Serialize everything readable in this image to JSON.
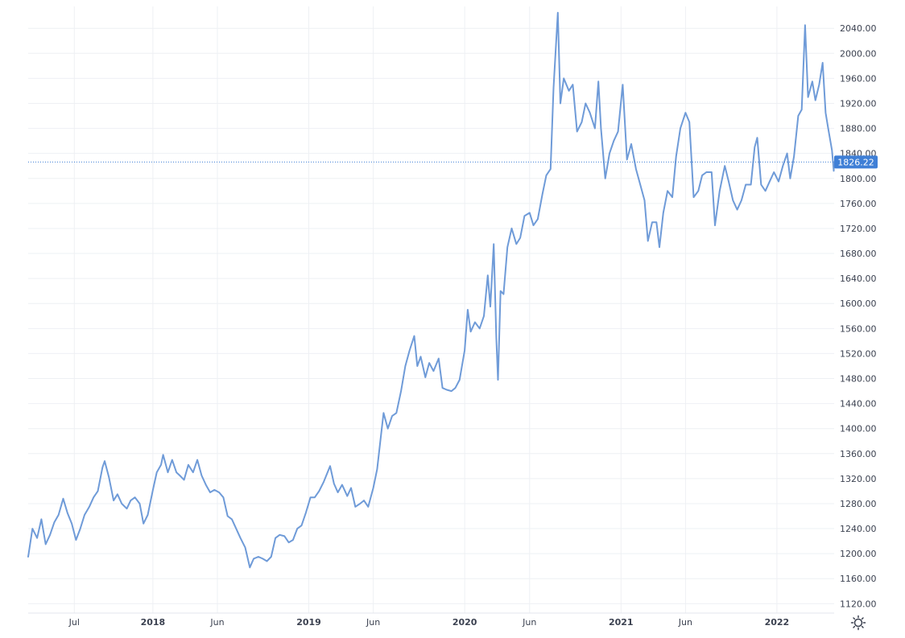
{
  "chart_data": {
    "type": "line",
    "title": "",
    "xlabel": "",
    "ylabel": "",
    "ylim": [
      1105,
      2075
    ],
    "x_range": [
      "2017-03-15",
      "2022-05-15"
    ],
    "y_ticks": [
      "1120.00",
      "1160.00",
      "1200.00",
      "1240.00",
      "1280.00",
      "1320.00",
      "1360.00",
      "1400.00",
      "1440.00",
      "1480.00",
      "1520.00",
      "1560.00",
      "1600.00",
      "1640.00",
      "1680.00",
      "1720.00",
      "1760.00",
      "1800.00",
      "1840.00",
      "1880.00",
      "1920.00",
      "1960.00",
      "2000.00",
      "2040.00"
    ],
    "x_ticks": [
      {
        "label": "Jul",
        "date": "2017-07-01",
        "bold": false
      },
      {
        "label": "2018",
        "date": "2018-01-01",
        "bold": true
      },
      {
        "label": "Jun",
        "date": "2018-06-01",
        "bold": false
      },
      {
        "label": "2019",
        "date": "2019-01-01",
        "bold": true
      },
      {
        "label": "Jun",
        "date": "2019-06-01",
        "bold": false
      },
      {
        "label": "2020",
        "date": "2020-01-01",
        "bold": true
      },
      {
        "label": "Jun",
        "date": "2020-06-01",
        "bold": false
      },
      {
        "label": "2021",
        "date": "2021-01-01",
        "bold": true
      },
      {
        "label": "Jun",
        "date": "2021-06-01",
        "bold": false
      },
      {
        "label": "2022",
        "date": "2022-01-01",
        "bold": true
      }
    ],
    "grid": true,
    "series_color": "#6f9bd8",
    "last_value": "1826.22",
    "last_value_color": "#3f7fd6",
    "series": [
      {
        "points": [
          [
            "2017-03-15",
            1195
          ],
          [
            "2017-03-25",
            1240
          ],
          [
            "2017-04-05",
            1225
          ],
          [
            "2017-04-15",
            1255
          ],
          [
            "2017-04-25",
            1215
          ],
          [
            "2017-05-05",
            1230
          ],
          [
            "2017-05-15",
            1250
          ],
          [
            "2017-05-25",
            1262
          ],
          [
            "2017-06-05",
            1288
          ],
          [
            "2017-06-15",
            1265
          ],
          [
            "2017-06-25",
            1248
          ],
          [
            "2017-07-05",
            1222
          ],
          [
            "2017-07-15",
            1240
          ],
          [
            "2017-07-25",
            1262
          ],
          [
            "2017-08-05",
            1275
          ],
          [
            "2017-08-15",
            1290
          ],
          [
            "2017-08-25",
            1300
          ],
          [
            "2017-09-05",
            1338
          ],
          [
            "2017-09-10",
            1348
          ],
          [
            "2017-09-20",
            1322
          ],
          [
            "2017-10-01",
            1285
          ],
          [
            "2017-10-10",
            1295
          ],
          [
            "2017-10-20",
            1280
          ],
          [
            "2017-11-01",
            1272
          ],
          [
            "2017-11-10",
            1285
          ],
          [
            "2017-11-20",
            1290
          ],
          [
            "2017-12-01",
            1280
          ],
          [
            "2017-12-10",
            1248
          ],
          [
            "2017-12-20",
            1262
          ],
          [
            "2018-01-01",
            1302
          ],
          [
            "2018-01-10",
            1330
          ],
          [
            "2018-01-20",
            1342
          ],
          [
            "2018-01-25",
            1358
          ],
          [
            "2018-02-05",
            1330
          ],
          [
            "2018-02-15",
            1350
          ],
          [
            "2018-02-25",
            1330
          ],
          [
            "2018-03-05",
            1325
          ],
          [
            "2018-03-15",
            1318
          ],
          [
            "2018-03-25",
            1342
          ],
          [
            "2018-04-05",
            1330
          ],
          [
            "2018-04-15",
            1350
          ],
          [
            "2018-04-25",
            1325
          ],
          [
            "2018-05-05",
            1310
          ],
          [
            "2018-05-15",
            1298
          ],
          [
            "2018-05-25",
            1302
          ],
          [
            "2018-06-05",
            1298
          ],
          [
            "2018-06-15",
            1290
          ],
          [
            "2018-06-25",
            1260
          ],
          [
            "2018-07-05",
            1255
          ],
          [
            "2018-07-15",
            1240
          ],
          [
            "2018-07-25",
            1225
          ],
          [
            "2018-08-05",
            1210
          ],
          [
            "2018-08-16",
            1178
          ],
          [
            "2018-08-25",
            1192
          ],
          [
            "2018-09-05",
            1195
          ],
          [
            "2018-09-15",
            1192
          ],
          [
            "2018-09-25",
            1188
          ],
          [
            "2018-10-05",
            1195
          ],
          [
            "2018-10-15",
            1225
          ],
          [
            "2018-10-25",
            1230
          ],
          [
            "2018-11-05",
            1228
          ],
          [
            "2018-11-15",
            1218
          ],
          [
            "2018-11-25",
            1222
          ],
          [
            "2018-12-05",
            1240
          ],
          [
            "2018-12-15",
            1245
          ],
          [
            "2018-12-25",
            1265
          ],
          [
            "2019-01-05",
            1290
          ],
          [
            "2019-01-15",
            1290
          ],
          [
            "2019-01-25",
            1300
          ],
          [
            "2019-02-05",
            1315
          ],
          [
            "2019-02-20",
            1340
          ],
          [
            "2019-03-01",
            1312
          ],
          [
            "2019-03-10",
            1298
          ],
          [
            "2019-03-20",
            1310
          ],
          [
            "2019-04-01",
            1292
          ],
          [
            "2019-04-10",
            1305
          ],
          [
            "2019-04-20",
            1275
          ],
          [
            "2019-05-01",
            1280
          ],
          [
            "2019-05-10",
            1285
          ],
          [
            "2019-05-20",
            1275
          ],
          [
            "2019-06-01",
            1305
          ],
          [
            "2019-06-10",
            1335
          ],
          [
            "2019-06-20",
            1395
          ],
          [
            "2019-06-25",
            1425
          ],
          [
            "2019-07-05",
            1400
          ],
          [
            "2019-07-15",
            1420
          ],
          [
            "2019-07-25",
            1425
          ],
          [
            "2019-08-05",
            1460
          ],
          [
            "2019-08-15",
            1500
          ],
          [
            "2019-08-25",
            1525
          ],
          [
            "2019-09-05",
            1548
          ],
          [
            "2019-09-12",
            1500
          ],
          [
            "2019-09-20",
            1515
          ],
          [
            "2019-10-01",
            1482
          ],
          [
            "2019-10-10",
            1505
          ],
          [
            "2019-10-20",
            1492
          ],
          [
            "2019-11-01",
            1512
          ],
          [
            "2019-11-10",
            1465
          ],
          [
            "2019-11-20",
            1462
          ],
          [
            "2019-12-01",
            1460
          ],
          [
            "2019-12-10",
            1465
          ],
          [
            "2019-12-20",
            1478
          ],
          [
            "2020-01-01",
            1525
          ],
          [
            "2020-01-08",
            1590
          ],
          [
            "2020-01-15",
            1555
          ],
          [
            "2020-01-25",
            1570
          ],
          [
            "2020-02-05",
            1560
          ],
          [
            "2020-02-15",
            1580
          ],
          [
            "2020-02-24",
            1645
          ],
          [
            "2020-03-01",
            1595
          ],
          [
            "2020-03-09",
            1695
          ],
          [
            "2020-03-15",
            1545
          ],
          [
            "2020-03-19",
            1478
          ],
          [
            "2020-03-25",
            1620
          ],
          [
            "2020-04-01",
            1615
          ],
          [
            "2020-04-10",
            1690
          ],
          [
            "2020-04-20",
            1720
          ],
          [
            "2020-05-01",
            1695
          ],
          [
            "2020-05-10",
            1705
          ],
          [
            "2020-05-20",
            1740
          ],
          [
            "2020-06-01",
            1745
          ],
          [
            "2020-06-10",
            1725
          ],
          [
            "2020-06-20",
            1735
          ],
          [
            "2020-07-01",
            1775
          ],
          [
            "2020-07-10",
            1805
          ],
          [
            "2020-07-20",
            1815
          ],
          [
            "2020-07-27",
            1945
          ],
          [
            "2020-08-06",
            2065
          ],
          [
            "2020-08-12",
            1920
          ],
          [
            "2020-08-20",
            1960
          ],
          [
            "2020-09-01",
            1940
          ],
          [
            "2020-09-10",
            1950
          ],
          [
            "2020-09-20",
            1875
          ],
          [
            "2020-10-01",
            1890
          ],
          [
            "2020-10-10",
            1920
          ],
          [
            "2020-10-20",
            1905
          ],
          [
            "2020-11-01",
            1880
          ],
          [
            "2020-11-09",
            1955
          ],
          [
            "2020-11-15",
            1880
          ],
          [
            "2020-11-25",
            1800
          ],
          [
            "2020-12-05",
            1840
          ],
          [
            "2020-12-15",
            1860
          ],
          [
            "2020-12-25",
            1875
          ],
          [
            "2021-01-05",
            1950
          ],
          [
            "2021-01-15",
            1830
          ],
          [
            "2021-01-25",
            1855
          ],
          [
            "2021-02-05",
            1815
          ],
          [
            "2021-02-15",
            1790
          ],
          [
            "2021-02-25",
            1765
          ],
          [
            "2021-03-05",
            1700
          ],
          [
            "2021-03-15",
            1730
          ],
          [
            "2021-03-25",
            1730
          ],
          [
            "2021-04-01",
            1690
          ],
          [
            "2021-04-10",
            1745
          ],
          [
            "2021-04-20",
            1780
          ],
          [
            "2021-05-01",
            1770
          ],
          [
            "2021-05-10",
            1835
          ],
          [
            "2021-05-20",
            1880
          ],
          [
            "2021-06-01",
            1905
          ],
          [
            "2021-06-10",
            1890
          ],
          [
            "2021-06-20",
            1770
          ],
          [
            "2021-07-01",
            1780
          ],
          [
            "2021-07-10",
            1805
          ],
          [
            "2021-07-20",
            1810
          ],
          [
            "2021-08-01",
            1810
          ],
          [
            "2021-08-09",
            1725
          ],
          [
            "2021-08-20",
            1780
          ],
          [
            "2021-09-01",
            1820
          ],
          [
            "2021-09-10",
            1795
          ],
          [
            "2021-09-20",
            1765
          ],
          [
            "2021-09-30",
            1750
          ],
          [
            "2021-10-10",
            1765
          ],
          [
            "2021-10-20",
            1790
          ],
          [
            "2021-11-01",
            1790
          ],
          [
            "2021-11-10",
            1850
          ],
          [
            "2021-11-16",
            1865
          ],
          [
            "2021-11-25",
            1790
          ],
          [
            "2021-12-05",
            1780
          ],
          [
            "2021-12-15",
            1795
          ],
          [
            "2021-12-25",
            1810
          ],
          [
            "2022-01-05",
            1795
          ],
          [
            "2022-01-15",
            1820
          ],
          [
            "2022-01-25",
            1840
          ],
          [
            "2022-02-01",
            1800
          ],
          [
            "2022-02-10",
            1835
          ],
          [
            "2022-02-20",
            1900
          ],
          [
            "2022-02-28",
            1910
          ],
          [
            "2022-03-08",
            2045
          ],
          [
            "2022-03-15",
            1930
          ],
          [
            "2022-03-25",
            1955
          ],
          [
            "2022-04-01",
            1925
          ],
          [
            "2022-04-10",
            1950
          ],
          [
            "2022-04-18",
            1985
          ],
          [
            "2022-04-25",
            1905
          ],
          [
            "2022-05-01",
            1880
          ],
          [
            "2022-05-10",
            1845
          ],
          [
            "2022-05-14",
            1812
          ],
          [
            "2022-05-15",
            1826.22
          ]
        ]
      }
    ]
  }
}
